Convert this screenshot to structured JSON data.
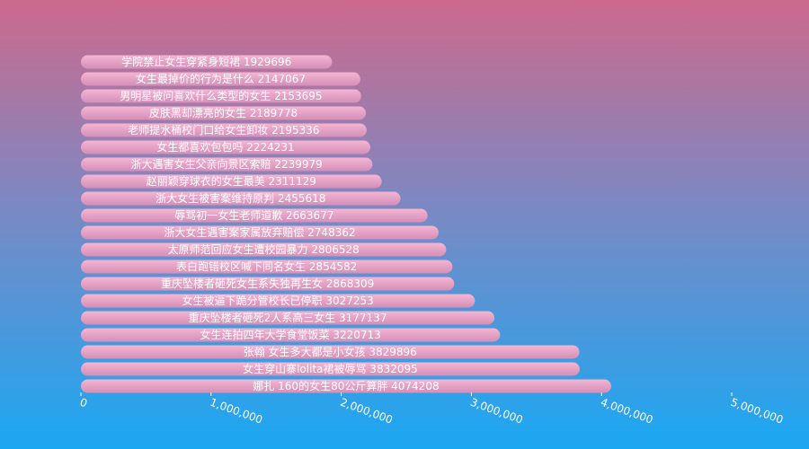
{
  "chart_data": {
    "type": "bar",
    "orientation": "horizontal",
    "title": "",
    "xlabel": "",
    "ylabel": "",
    "xlim": [
      0,
      5000000
    ],
    "grid": false,
    "legend": "none",
    "colors": {
      "bar_top": "#f4b5d2",
      "bar_bottom": "#d48fb8",
      "text": "#ffffff"
    },
    "x_ticks": [
      0,
      1000000,
      2000000,
      3000000,
      4000000,
      5000000
    ],
    "x_tick_labels": [
      "0",
      "1,000,000",
      "2,000,000",
      "3,000,000",
      "4,000,000",
      "5,000,000"
    ],
    "categories": [
      "学院禁止女生穿紧身短裙",
      "女生最掉价的行为是什么",
      "男明星被问喜欢什么类型的女生",
      "皮肤黑却漂亮的女生",
      "老师提水桶校门口给女生卸妆",
      "女生都喜欢包包吗",
      "浙大遇害女生父亲向景区索赔",
      "赵丽颖穿球衣的女生最美",
      "浙大女生被害案维持原判",
      "辱骂初一女生老师道歉",
      "浙大女生遇害案家属放弃赔偿",
      "太原师范回应女生遭校园暴力",
      "表白跑错校区喊下同名女生",
      "重庆坠楼者砸死女生系失独再生女",
      "女生被逼下跪分管校长已停职",
      "重庆坠楼者砸死2人系高三女生",
      "女生连拍四年大学食堂饭菜",
      "张翰 女生多大都是小女孩",
      "女生穿山寨lolita裙被辱骂",
      "娜扎 160的女生80公斤算胖"
    ],
    "values": [
      1929696,
      2147067,
      2153695,
      2189778,
      2195336,
      2224231,
      2239979,
      2311129,
      2455618,
      2663677,
      2748362,
      2806528,
      2854582,
      2868309,
      3027253,
      3177137,
      3220713,
      3829896,
      3832095,
      4074208
    ]
  }
}
